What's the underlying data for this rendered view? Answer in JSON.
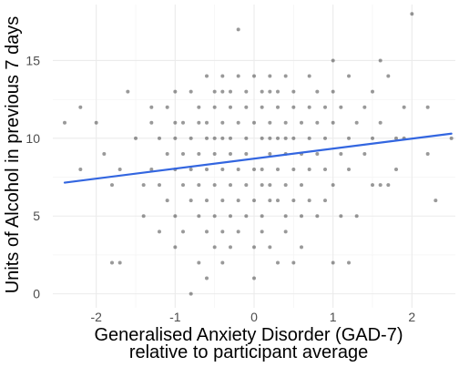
{
  "chart_data": {
    "type": "scatter",
    "title": "",
    "xlabel_lines": [
      "Generalised Anxiety Disorder (GAD-7)",
      "relative to participant average"
    ],
    "ylabel": "Units of Alcohol in previous 7 days",
    "xlim": [
      -2.55,
      2.55
    ],
    "ylim": [
      -0.9,
      18.6
    ],
    "x_ticks": [
      -2,
      -1,
      0,
      1,
      2
    ],
    "y_ticks": [
      0,
      5,
      10,
      15
    ],
    "x_tick_labels": [
      "-2",
      "-1",
      "0",
      "1",
      "2"
    ],
    "y_tick_labels": [
      "0",
      "5",
      "10",
      "15"
    ],
    "grid": true,
    "point_color": "#000000",
    "point_opacity": 0.4,
    "trend_line": {
      "x": [
        -2.4,
        2.5
      ],
      "y": [
        7.15,
        10.3
      ],
      "color": "#3366e0"
    },
    "points": [
      [
        -2.4,
        11
      ],
      [
        -2.2,
        8
      ],
      [
        -2.2,
        12
      ],
      [
        -2.0,
        11
      ],
      [
        -1.9,
        9
      ],
      [
        -1.8,
        7
      ],
      [
        -1.8,
        2
      ],
      [
        -1.7,
        2
      ],
      [
        -1.7,
        8
      ],
      [
        -1.6,
        13
      ],
      [
        -1.5,
        10
      ],
      [
        -1.4,
        7
      ],
      [
        -1.4,
        5
      ],
      [
        -1.3,
        11
      ],
      [
        -1.3,
        8
      ],
      [
        -1.3,
        12
      ],
      [
        -1.2,
        10
      ],
      [
        -1.2,
        7
      ],
      [
        -1.2,
        4
      ],
      [
        -1.1,
        12
      ],
      [
        -1.1,
        9
      ],
      [
        -1.1,
        6
      ],
      [
        -1.0,
        13
      ],
      [
        -1.0,
        11
      ],
      [
        -1.0,
        10
      ],
      [
        -1.0,
        8
      ],
      [
        -1.0,
        5
      ],
      [
        -1.0,
        3
      ],
      [
        -0.9,
        11
      ],
      [
        -0.9,
        9
      ],
      [
        -0.9,
        7
      ],
      [
        -0.9,
        4
      ],
      [
        -0.8,
        13
      ],
      [
        -0.8,
        10
      ],
      [
        -0.8,
        8
      ],
      [
        -0.8,
        6
      ],
      [
        -0.8,
        0
      ],
      [
        -0.7,
        12
      ],
      [
        -0.7,
        11
      ],
      [
        -0.7,
        9
      ],
      [
        -0.7,
        7
      ],
      [
        -0.7,
        5
      ],
      [
        -0.7,
        2
      ],
      [
        -0.6,
        14
      ],
      [
        -0.6,
        11
      ],
      [
        -0.6,
        10
      ],
      [
        -0.6,
        8
      ],
      [
        -0.6,
        6
      ],
      [
        -0.6,
        4
      ],
      [
        -0.6,
        1
      ],
      [
        -0.5,
        13
      ],
      [
        -0.5,
        12
      ],
      [
        -0.5,
        10
      ],
      [
        -0.5,
        9
      ],
      [
        -0.5,
        7
      ],
      [
        -0.5,
        5
      ],
      [
        -0.5,
        3
      ],
      [
        -0.4,
        14
      ],
      [
        -0.4,
        13
      ],
      [
        -0.4,
        11
      ],
      [
        -0.4,
        10
      ],
      [
        -0.4,
        8
      ],
      [
        -0.4,
        6
      ],
      [
        -0.4,
        4
      ],
      [
        -0.4,
        2
      ],
      [
        -0.3,
        13
      ],
      [
        -0.3,
        12
      ],
      [
        -0.3,
        10
      ],
      [
        -0.3,
        9
      ],
      [
        -0.3,
        7
      ],
      [
        -0.3,
        5
      ],
      [
        -0.3,
        3
      ],
      [
        -0.2,
        17
      ],
      [
        -0.2,
        14
      ],
      [
        -0.2,
        11
      ],
      [
        -0.2,
        8
      ],
      [
        -0.2,
        6
      ],
      [
        -0.2,
        4
      ],
      [
        -0.1,
        13
      ],
      [
        -0.1,
        12
      ],
      [
        -0.1,
        10
      ],
      [
        -0.1,
        9
      ],
      [
        -0.1,
        7
      ],
      [
        -0.1,
        5
      ],
      [
        0.0,
        14
      ],
      [
        0.0,
        11
      ],
      [
        0.0,
        8
      ],
      [
        0.0,
        6
      ],
      [
        0.0,
        3
      ],
      [
        0.0,
        1
      ],
      [
        0.1,
        13
      ],
      [
        0.1,
        12
      ],
      [
        0.1,
        10
      ],
      [
        0.1,
        8
      ],
      [
        0.1,
        7
      ],
      [
        0.1,
        5
      ],
      [
        0.1,
        4
      ],
      [
        0.2,
        14
      ],
      [
        0.2,
        13
      ],
      [
        0.2,
        11
      ],
      [
        0.2,
        10
      ],
      [
        0.2,
        9
      ],
      [
        0.2,
        7
      ],
      [
        0.2,
        6
      ],
      [
        0.2,
        3
      ],
      [
        0.3,
        13
      ],
      [
        0.3,
        12
      ],
      [
        0.3,
        10
      ],
      [
        0.3,
        8
      ],
      [
        0.3,
        6
      ],
      [
        0.3,
        2
      ],
      [
        0.4,
        14
      ],
      [
        0.4,
        11
      ],
      [
        0.4,
        10
      ],
      [
        0.4,
        9
      ],
      [
        0.4,
        7
      ],
      [
        0.4,
        5
      ],
      [
        0.4,
        4
      ],
      [
        0.5,
        13
      ],
      [
        0.5,
        12
      ],
      [
        0.5,
        10
      ],
      [
        0.5,
        8
      ],
      [
        0.5,
        6
      ],
      [
        0.5,
        2
      ],
      [
        0.6,
        11
      ],
      [
        0.6,
        9
      ],
      [
        0.6,
        7
      ],
      [
        0.6,
        5
      ],
      [
        0.6,
        3
      ],
      [
        0.7,
        14
      ],
      [
        0.7,
        12
      ],
      [
        0.7,
        10
      ],
      [
        0.7,
        8
      ],
      [
        0.7,
        6
      ],
      [
        0.8,
        13
      ],
      [
        0.8,
        11
      ],
      [
        0.8,
        9
      ],
      [
        0.8,
        5
      ],
      [
        0.9,
        12
      ],
      [
        0.9,
        10
      ],
      [
        0.9,
        8
      ],
      [
        0.9,
        6
      ],
      [
        1.0,
        15
      ],
      [
        1.0,
        13
      ],
      [
        1.0,
        11
      ],
      [
        1.0,
        7
      ],
      [
        1.0,
        2
      ],
      [
        1.1,
        12
      ],
      [
        1.1,
        9
      ],
      [
        1.1,
        5
      ],
      [
        1.2,
        14
      ],
      [
        1.2,
        10
      ],
      [
        1.2,
        8
      ],
      [
        1.2,
        2
      ],
      [
        1.3,
        11
      ],
      [
        1.3,
        5
      ],
      [
        1.4,
        12
      ],
      [
        1.4,
        9
      ],
      [
        1.5,
        13
      ],
      [
        1.5,
        10
      ],
      [
        1.5,
        7
      ],
      [
        1.6,
        15
      ],
      [
        1.6,
        11
      ],
      [
        1.6,
        7
      ],
      [
        1.7,
        14
      ],
      [
        1.7,
        7
      ],
      [
        1.8,
        10
      ],
      [
        1.8,
        8
      ],
      [
        1.9,
        12
      ],
      [
        1.9,
        10
      ],
      [
        2.0,
        18
      ],
      [
        2.2,
        12
      ],
      [
        2.2,
        9
      ],
      [
        2.3,
        6
      ],
      [
        2.5,
        10
      ]
    ]
  }
}
